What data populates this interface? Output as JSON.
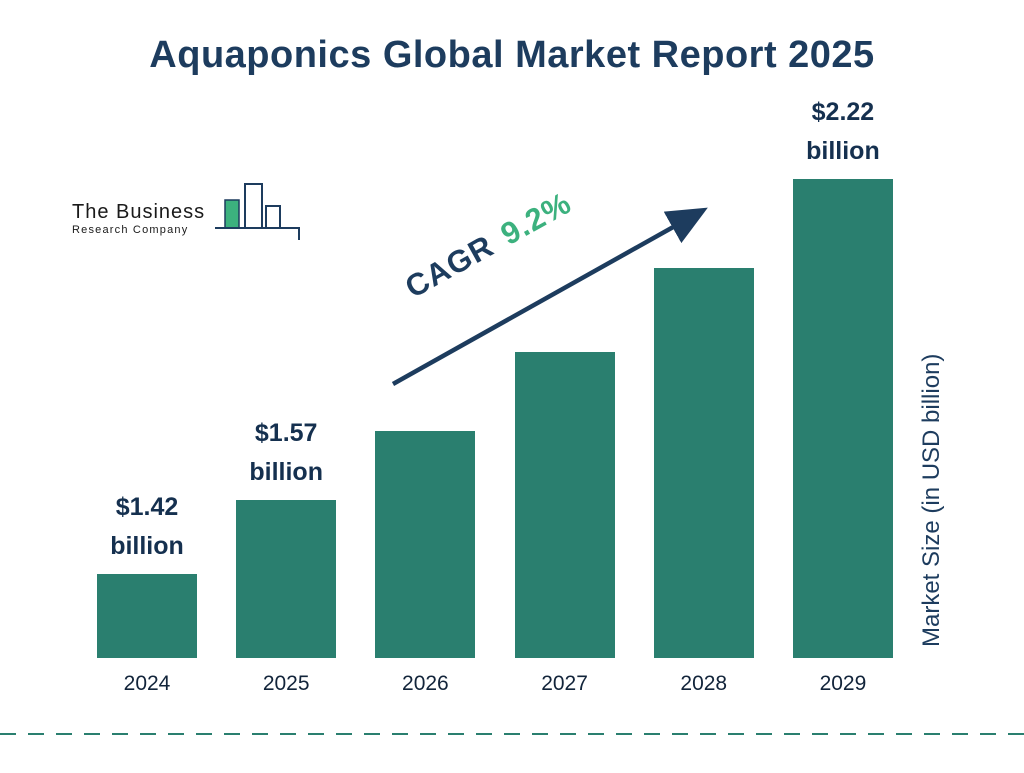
{
  "title": "Aquaponics Global Market Report 2025",
  "logo": {
    "line1": "The Business",
    "line2": "Research Company"
  },
  "annotation": {
    "label": "CAGR",
    "value": "9.2%"
  },
  "y_axis_label": "Market Size (in USD billion)",
  "colors": {
    "bar": "#2a7f6f",
    "navy": "#1d3c5e",
    "green": "#3cb17e"
  },
  "chart_data": {
    "type": "bar",
    "title": "Aquaponics Global Market Report 2025",
    "categories": [
      "2024",
      "2025",
      "2026",
      "2027",
      "2028",
      "2029"
    ],
    "values": [
      1.42,
      1.57,
      1.71,
      1.87,
      2.04,
      2.22
    ],
    "value_labels": [
      [
        "$1.42",
        "billion"
      ],
      [
        "$1.57",
        "billion"
      ],
      null,
      null,
      null,
      [
        "$2.22",
        "billion"
      ]
    ],
    "unit": "USD billion",
    "ylabel": "Market Size (in USD billion)",
    "cagr": "9.2%",
    "baseline_truncated": true,
    "ylim_displayed": [
      1.25,
      2.3
    ],
    "grid": false,
    "legend": "none"
  }
}
